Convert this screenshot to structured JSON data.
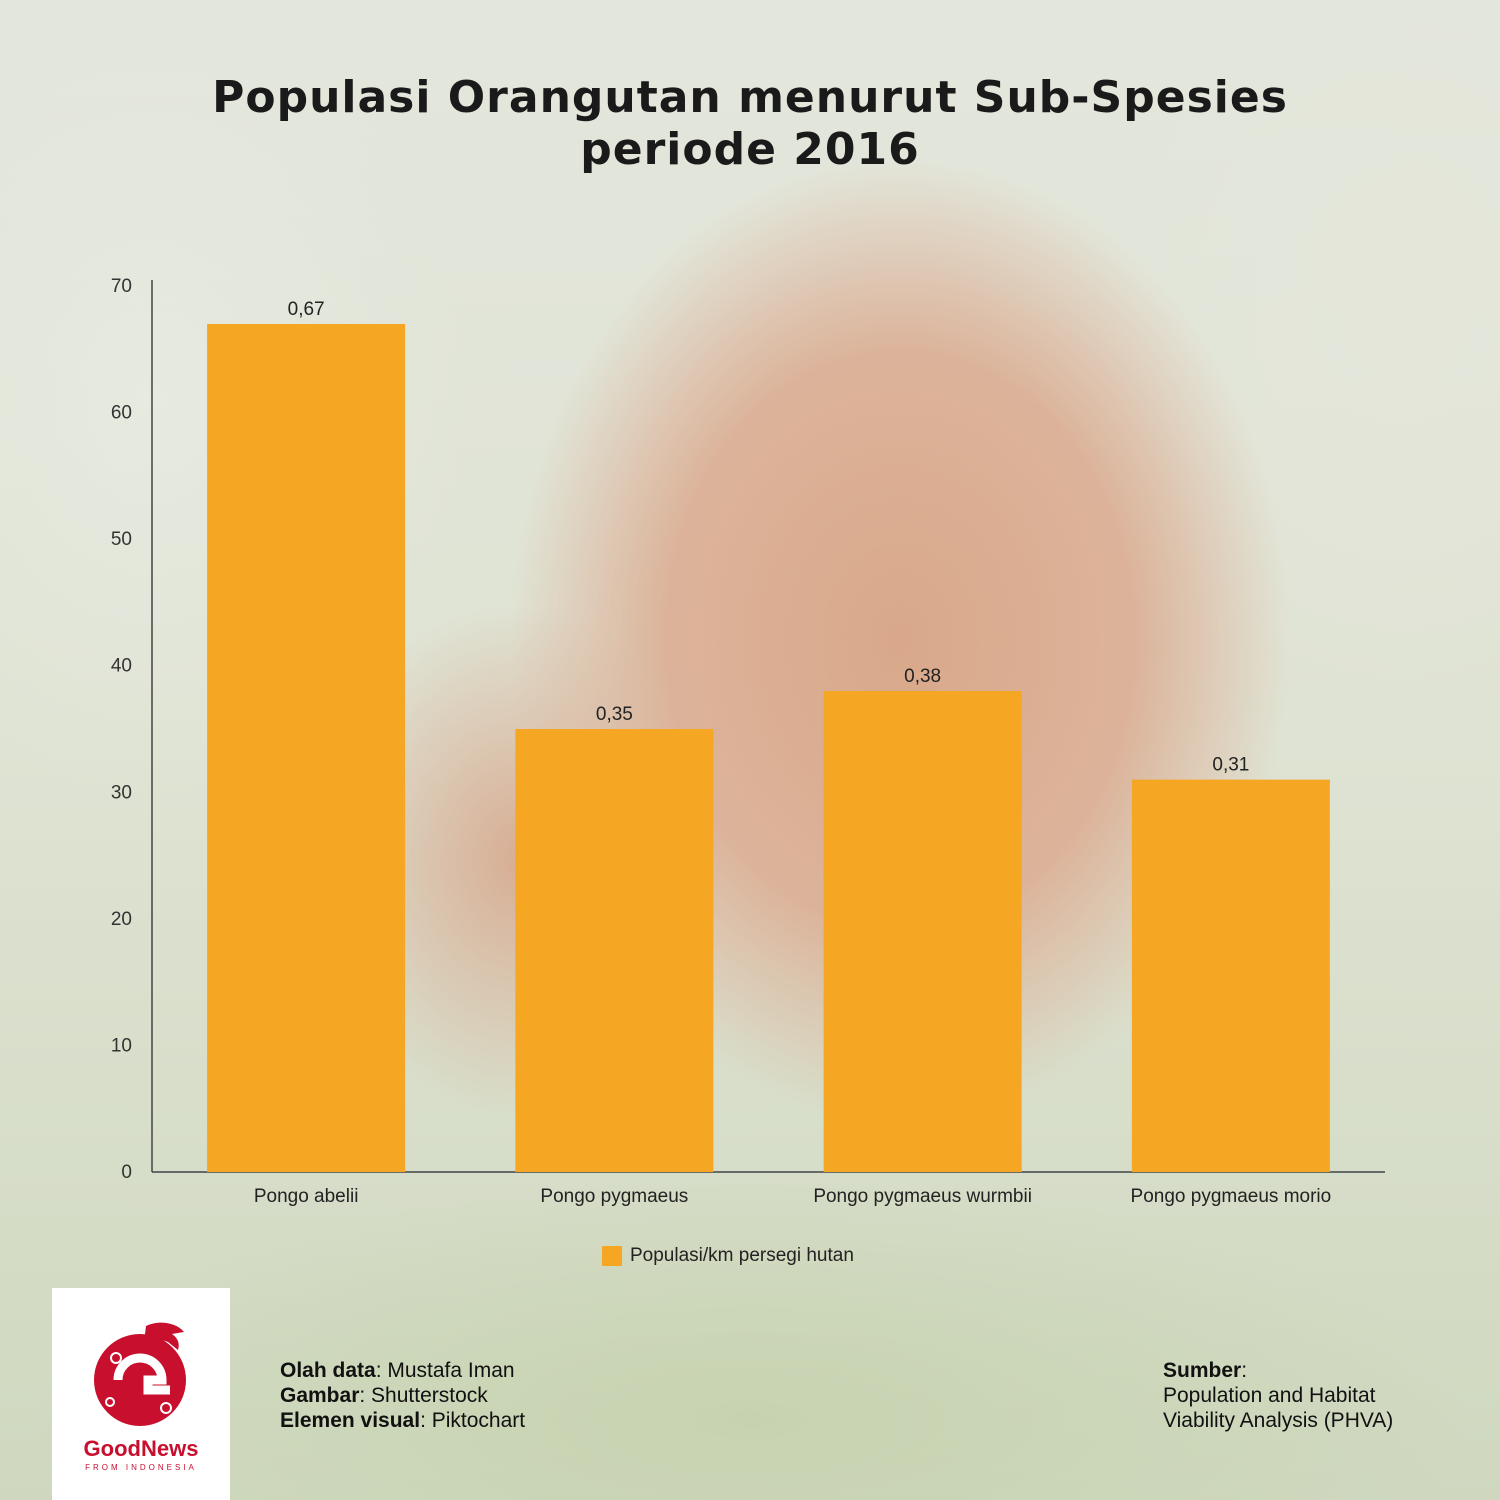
{
  "title_line1": "Populasi Orangutan menurut Sub-Spesies",
  "title_line2": "periode 2016",
  "legend_label": "Populasi/km persegi hutan",
  "credits": {
    "data_label": "Olah data",
    "data_value": "Mustafa Iman",
    "image_label": "Gambar",
    "image_value": "Shutterstock",
    "visual_label": "Elemen visual",
    "visual_value": "Piktochart"
  },
  "source": {
    "label": "Sumber",
    "line1": "Population and Habitat",
    "line2": "Viability Analysis (PHVA)"
  },
  "logo": {
    "name": "GoodNews",
    "tagline": "FROM INDONESIA"
  },
  "colors": {
    "bar": "#f5a623",
    "brand": "#c8102e"
  },
  "chart_data": {
    "type": "bar",
    "title": "Populasi Orangutan menurut Sub-Spesies periode 2016",
    "categories": [
      "Pongo abelii",
      "Pongo pygmaeus",
      "Pongo pygmaeus wurmbii",
      "Pongo pygmaeus morio"
    ],
    "series": [
      {
        "name": "Populasi/km persegi hutan",
        "values": [
          67,
          35,
          38,
          31
        ],
        "labels": [
          "0,67",
          "0,35",
          "0,38",
          "0,31"
        ]
      }
    ],
    "yticks": [
      0,
      10,
      20,
      30,
      40,
      50,
      60,
      70
    ],
    "ylim": [
      0,
      70
    ],
    "xlabel": "",
    "ylabel": "",
    "grid": false,
    "legend": "bottom-center"
  }
}
